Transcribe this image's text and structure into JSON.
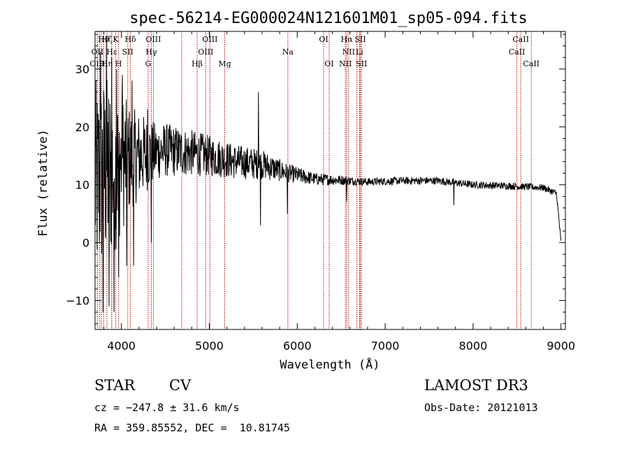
{
  "chart_data": {
    "type": "line",
    "title": "spec-56214-EG000024N121601M01_sp05-094.fits",
    "xlabel": "Wavelength (Å)",
    "ylabel": "Flux (relative)",
    "xlim": [
      3700,
      9050
    ],
    "ylim": [
      -15,
      36.5
    ],
    "xticks": [
      4000,
      5000,
      6000,
      7000,
      8000,
      9000
    ],
    "xtick_labels": [
      "4000",
      "5000",
      "6000",
      "7000",
      "8000",
      "9000"
    ],
    "yticks": [
      -10,
      0,
      10,
      20,
      30
    ],
    "ytick_labels": [
      "−10",
      "0",
      "10",
      "20",
      "30"
    ],
    "spectrum_anchors": {
      "x": [
        3700,
        3800,
        4000,
        4200,
        4500,
        4800,
        5000,
        5300,
        5600,
        5900,
        6200,
        6500,
        6800,
        7200,
        7600,
        8000,
        8400,
        8800,
        8950,
        9000
      ],
      "y": [
        10,
        12,
        14,
        15,
        16,
        15.5,
        15,
        14,
        13.5,
        12,
        11,
        10.8,
        10.5,
        10.7,
        10.7,
        10,
        9.8,
        9.5,
        8.5,
        0
      ]
    },
    "noise_amplitude_anchors": {
      "x": [
        3700,
        3900,
        4100,
        4400,
        4800,
        5200,
        5600,
        5900,
        6200,
        6700,
        9000
      ],
      "y": [
        18,
        16,
        9,
        5,
        4,
        3.2,
        2.6,
        1.6,
        1.1,
        0.7,
        0.6
      ]
    },
    "spikes": [
      {
        "x": 3760,
        "y": 33
      },
      {
        "x": 3790,
        "y": -12
      },
      {
        "x": 3830,
        "y": 35
      },
      {
        "x": 3860,
        "y": -11
      },
      {
        "x": 3890,
        "y": 32
      },
      {
        "x": 3915,
        "y": -12
      },
      {
        "x": 3945,
        "y": 30
      },
      {
        "x": 3970,
        "y": -6
      },
      {
        "x": 4010,
        "y": 29
      },
      {
        "x": 4060,
        "y": -4
      },
      {
        "x": 4120,
        "y": 28
      },
      {
        "x": 4140,
        "y": -4
      },
      {
        "x": 4300,
        "y": 23
      },
      {
        "x": 4340,
        "y": 0
      },
      {
        "x": 5560,
        "y": 26
      },
      {
        "x": 5580,
        "y": 3
      },
      {
        "x": 5890,
        "y": 5
      },
      {
        "x": 6563,
        "y": 7
      },
      {
        "x": 7780,
        "y": 6.5
      },
      {
        "x": 8960,
        "y": 6.5
      }
    ],
    "emission_lines": [
      {
        "label": "Hθ",
        "x": 3798,
        "row": 0
      },
      {
        "label": "Hζ",
        "x": 3835,
        "row": 0
      },
      {
        "label": "K",
        "x": 3934,
        "row": 0
      },
      {
        "label": "Hδ",
        "x": 4102,
        "row": 0
      },
      {
        "label": "OIII",
        "x": 4363,
        "row": 0
      },
      {
        "label": "OIII",
        "x": 5007,
        "row": 0
      },
      {
        "label": "OI",
        "x": 6300,
        "row": 0
      },
      {
        "label": "Hα",
        "x": 6563,
        "row": 0
      },
      {
        "label": "SII",
        "x": 6717,
        "row": 0
      },
      {
        "label": "CaII",
        "x": 8542,
        "row": 0
      },
      {
        "label": "OII",
        "x": 3727,
        "row": 1
      },
      {
        "label": "Hε",
        "x": 3890,
        "row": 1
      },
      {
        "label": "SII",
        "x": 4072,
        "row": 1
      },
      {
        "label": "Hγ",
        "x": 4340,
        "row": 1
      },
      {
        "label": "OIII",
        "x": 4959,
        "row": 1
      },
      {
        "label": "Na",
        "x": 5893,
        "row": 1
      },
      {
        "label": "NII",
        "x": 6584,
        "row": 1
      },
      {
        "label": "Li",
        "x": 6708,
        "row": 1
      },
      {
        "label": "CaII",
        "x": 8498,
        "row": 1
      },
      {
        "label": "OIII",
        "x": 3727,
        "row": 2
      },
      {
        "label": "Hη",
        "x": 3835,
        "row": 2
      },
      {
        "label": "H",
        "x": 3968,
        "row": 2
      },
      {
        "label": "G",
        "x": 4304,
        "row": 2
      },
      {
        "label": "Hβ",
        "x": 4861,
        "row": 2
      },
      {
        "label": "Mg",
        "x": 5175,
        "row": 2
      },
      {
        "label": "OI",
        "x": 6363,
        "row": 2
      },
      {
        "label": "NII",
        "x": 6548,
        "row": 2
      },
      {
        "label": "SII",
        "x": 6731,
        "row": 2
      },
      {
        "label": "CaII",
        "x": 8662,
        "row": 2
      }
    ],
    "extra_marker_lines": [
      3750,
      3771,
      3889,
      4686,
      6678
    ]
  },
  "info": {
    "class": "STAR",
    "subclass": "CV",
    "survey": "LAMOST DR3",
    "cz": "cz = −247.8 ± 31.6 km/s",
    "obs_date": "Obs-Date: 20121013",
    "coords": "RA = 359.85552, DEC =  10.81745"
  },
  "colors": {
    "spectrum": "#000000",
    "marker_line": "#c00000",
    "frame": "#000000"
  }
}
